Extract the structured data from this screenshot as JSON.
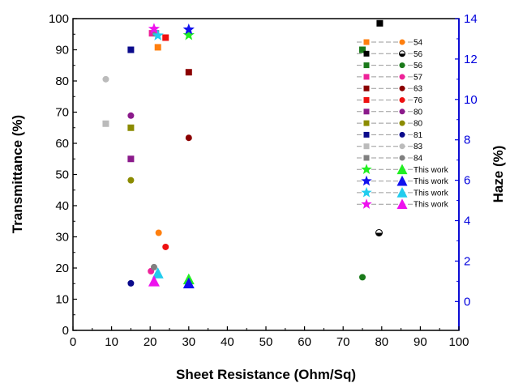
{
  "chart_data": {
    "type": "scatter",
    "title": "",
    "xlabel": "Sheet Resistance (Ohm/Sq)",
    "ylabel": "Transmittance (%)",
    "y2label": "Haze (%)",
    "xlim": [
      0,
      100
    ],
    "ylim": [
      0,
      100
    ],
    "y2lim": [
      -1.43,
      14
    ],
    "x_ticks": [
      0,
      10,
      20,
      30,
      40,
      50,
      60,
      70,
      80,
      90,
      100
    ],
    "y_ticks": [
      0,
      10,
      20,
      30,
      40,
      50,
      60,
      70,
      80,
      90,
      100
    ],
    "y2_ticks": [
      0,
      2,
      4,
      6,
      8,
      10,
      12,
      14
    ],
    "grid": false,
    "legend_position": "right",
    "series": [
      {
        "name": "54",
        "color": "#ff7f0e",
        "transmittance": [
          {
            "x": 22,
            "y": 90.8
          }
        ],
        "haze": [
          {
            "x": 22.2,
            "y": 3.4
          }
        ]
      },
      {
        "name": "56",
        "color": "#000000",
        "transmittance": [
          {
            "x": 79.5,
            "y": 98.5
          }
        ],
        "haze": [
          {
            "x": 79.3,
            "y": 3.4
          }
        ]
      },
      {
        "name": "56",
        "color": "#1a7a1a",
        "transmittance": [
          {
            "x": 75,
            "y": 90
          }
        ],
        "haze": [
          {
            "x": 75,
            "y": 1.2
          }
        ]
      },
      {
        "name": "57",
        "color": "#ee2299",
        "transmittance": [
          {
            "x": 20.5,
            "y": 95.3
          }
        ],
        "haze": [
          {
            "x": 20.2,
            "y": 1.5
          }
        ]
      },
      {
        "name": "63",
        "color": "#8b0000",
        "transmittance": [
          {
            "x": 30,
            "y": 82.8
          }
        ],
        "haze": [
          {
            "x": 30,
            "y": 8.1
          }
        ]
      },
      {
        "name": "76",
        "color": "#ee1111",
        "transmittance": [
          {
            "x": 24,
            "y": 93.9
          }
        ],
        "haze": [
          {
            "x": 24,
            "y": 2.7
          }
        ]
      },
      {
        "name": "80",
        "color": "#8b1a8b",
        "transmittance": [
          {
            "x": 15,
            "y": 55
          }
        ],
        "haze": [
          {
            "x": 15,
            "y": 9.2
          }
        ]
      },
      {
        "name": "80",
        "color": "#8b8b00",
        "transmittance": [
          {
            "x": 15,
            "y": 65
          }
        ],
        "haze": [
          {
            "x": 15,
            "y": 6
          }
        ]
      },
      {
        "name": "81",
        "color": "#0a0a8b",
        "transmittance": [
          {
            "x": 15,
            "y": 90
          }
        ],
        "haze": [
          {
            "x": 15,
            "y": 0.9
          }
        ]
      },
      {
        "name": "83",
        "color": "#bbbbbb",
        "transmittance": [
          {
            "x": 8.5,
            "y": 66.3
          }
        ],
        "haze": [
          {
            "x": 8.5,
            "y": 11
          }
        ]
      },
      {
        "name": "84",
        "color": "#808080",
        "transmittance": [
          {
            "x": 21.5,
            "y": 95.3
          }
        ],
        "haze": [
          {
            "x": 21,
            "y": 1.7
          }
        ]
      },
      {
        "name": "This work",
        "color": "#22ee22",
        "transmittance": [
          {
            "x": 30,
            "y": 94.7
          }
        ],
        "haze": [
          {
            "x": 30,
            "y": 1.1
          }
        ]
      },
      {
        "name": "This work",
        "color": "#1111ee",
        "transmittance": [
          {
            "x": 30,
            "y": 96.5
          }
        ],
        "haze": [
          {
            "x": 30,
            "y": 0.9
          }
        ]
      },
      {
        "name": "This work",
        "color": "#22ccee",
        "transmittance": [
          {
            "x": 22,
            "y": 94.6
          }
        ],
        "haze": [
          {
            "x": 22,
            "y": 1.4
          }
        ]
      },
      {
        "name": "This work",
        "color": "#ee11ee",
        "transmittance": [
          {
            "x": 21,
            "y": 96.7
          }
        ],
        "haze": [
          {
            "x": 21,
            "y": 1
          }
        ]
      }
    ]
  }
}
